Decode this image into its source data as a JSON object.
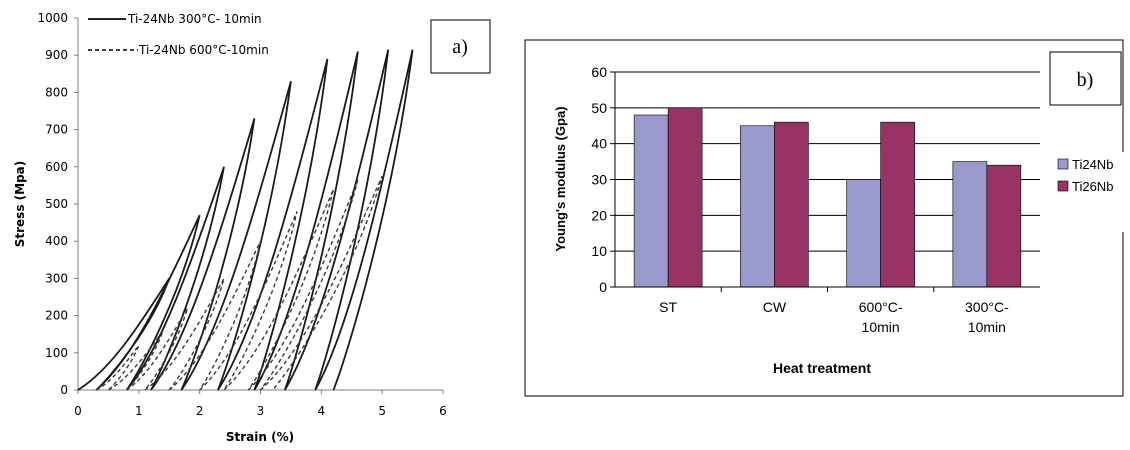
{
  "chart_data": [
    {
      "type": "line",
      "panel_label": "a)",
      "xlabel": "Strain (%)",
      "ylabel": "Stress (Mpa)",
      "xlim": [
        0,
        6
      ],
      "ylim": [
        0,
        1000
      ],
      "x_ticks": [
        0,
        1,
        2,
        3,
        4,
        5,
        6
      ],
      "y_ticks": [
        0,
        100,
        200,
        300,
        400,
        500,
        600,
        700,
        800,
        900,
        1000
      ],
      "legend_position": "top-left",
      "series": [
        {
          "name": "Ti-24Nb 300°C- 10min",
          "style": "solid",
          "color": "#1a1a1a",
          "loops": [
            {
              "start": [
                0.0,
                0
              ],
              "peak": [
                1.5,
                300
              ],
              "end": [
                0.3,
                0
              ]
            },
            {
              "start": [
                0.3,
                0
              ],
              "peak": [
                2.0,
                470
              ],
              "end": [
                0.8,
                0
              ]
            },
            {
              "start": [
                0.8,
                0
              ],
              "peak": [
                2.4,
                600
              ],
              "end": [
                1.2,
                0
              ]
            },
            {
              "start": [
                1.2,
                0
              ],
              "peak": [
                2.9,
                730
              ],
              "end": [
                1.7,
                0
              ]
            },
            {
              "start": [
                1.7,
                0
              ],
              "peak": [
                3.5,
                830
              ],
              "end": [
                2.3,
                0
              ]
            },
            {
              "start": [
                2.3,
                0
              ],
              "peak": [
                4.1,
                890
              ],
              "end": [
                2.9,
                0
              ]
            },
            {
              "start": [
                2.9,
                0
              ],
              "peak": [
                4.6,
                910
              ],
              "end": [
                3.4,
                0
              ]
            },
            {
              "start": [
                3.4,
                0
              ],
              "peak": [
                5.1,
                915
              ],
              "end": [
                3.9,
                0
              ]
            },
            {
              "start": [
                3.9,
                0
              ],
              "peak": [
                5.5,
                915
              ],
              "end": [
                4.2,
                0
              ]
            }
          ]
        },
        {
          "name": "Ti-24Nb 600°C-10min",
          "style": "dashed",
          "color": "#3a3a3a",
          "loops": [
            {
              "start": [
                0.3,
                0
              ],
              "peak": [
                1.0,
                120
              ],
              "end": [
                0.5,
                0
              ]
            },
            {
              "start": [
                0.5,
                0
              ],
              "peak": [
                1.4,
                160
              ],
              "end": [
                0.8,
                0
              ]
            },
            {
              "start": [
                0.8,
                0
              ],
              "peak": [
                1.8,
                220
              ],
              "end": [
                1.1,
                0
              ]
            },
            {
              "start": [
                1.1,
                0
              ],
              "peak": [
                2.4,
                300
              ],
              "end": [
                1.5,
                0
              ]
            },
            {
              "start": [
                1.5,
                0
              ],
              "peak": [
                3.0,
                400
              ],
              "end": [
                2.0,
                0
              ]
            },
            {
              "start": [
                2.0,
                0
              ],
              "peak": [
                3.6,
                480
              ],
              "end": [
                2.4,
                0
              ]
            },
            {
              "start": [
                2.4,
                0
              ],
              "peak": [
                4.2,
                540
              ],
              "end": [
                2.8,
                0
              ]
            },
            {
              "start": [
                2.8,
                0
              ],
              "peak": [
                4.6,
                565
              ],
              "end": [
                3.0,
                0
              ]
            },
            {
              "start": [
                3.0,
                0
              ],
              "peak": [
                5.0,
                575
              ],
              "end": [
                3.2,
                0
              ]
            }
          ]
        }
      ]
    },
    {
      "type": "bar",
      "panel_label": "b)",
      "xlabel": "Heat treatment",
      "ylabel": "Young's modulus (Gpa)",
      "ylim": [
        0,
        60
      ],
      "y_ticks": [
        0,
        10,
        20,
        30,
        40,
        50,
        60
      ],
      "grid": true,
      "legend_position": "right",
      "categories": [
        "ST",
        "CW",
        "600°C-\n10min",
        "300°C-\n10min"
      ],
      "series": [
        {
          "name": "Ti24Nb",
          "color": "#9a99cc",
          "values": [
            48,
            45,
            30,
            35
          ]
        },
        {
          "name": "Ti26Nb",
          "color": "#993366",
          "values": [
            50,
            46,
            46,
            34
          ]
        }
      ]
    }
  ]
}
